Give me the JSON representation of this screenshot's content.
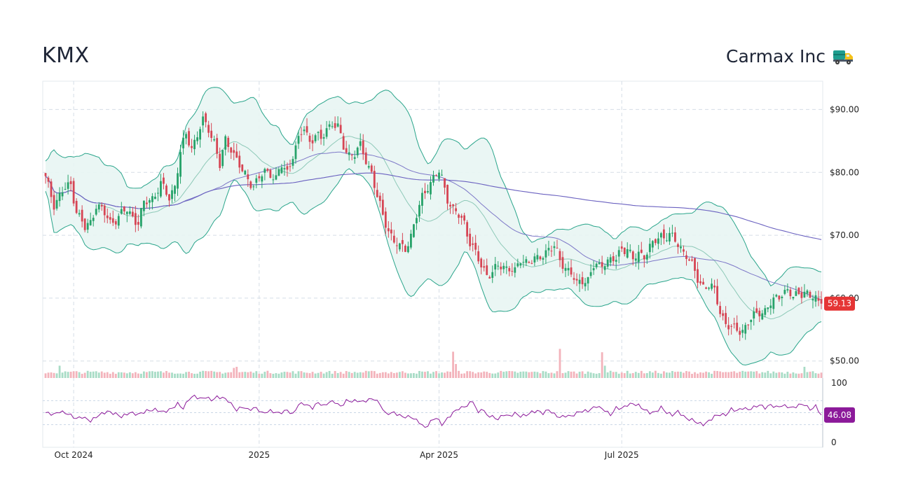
{
  "header": {
    "ticker": "KMX",
    "company": "Carmax Inc",
    "company_icon": "delivery-truck-icon"
  },
  "colors": {
    "up": "#26a269",
    "up_light": "#a8dcc6",
    "down": "#d64554",
    "down_light": "#f3b3bb",
    "band_fill": "#e8f5f3",
    "band_line": "#2aa58b",
    "ma_short": "#8ec9b8",
    "ma_long": "#6a61c0",
    "rsi": "#8c1a9a",
    "price_tag": "#e53535",
    "rsi_tag": "#8c1a9a"
  },
  "chart_data": [
    {
      "type": "candlestick",
      "panel": "price",
      "y_ticks": [
        "$50.00",
        "$60.00",
        "$70.00",
        "$80.00",
        "$90.00"
      ],
      "y_tick_values": [
        50,
        60,
        70,
        80,
        90
      ],
      "ylim": [
        47.3,
        94.5
      ],
      "x_ticks": [
        "Oct 2024",
        "2025",
        "Apr 2025",
        "Jul 2025"
      ],
      "x_tick_index": [
        10,
        76,
        140,
        205
      ],
      "last_price": "59.13",
      "anchors": [
        [
          0,
          79
        ],
        [
          3,
          75
        ],
        [
          6,
          77
        ],
        [
          9,
          78
        ],
        [
          11,
          74
        ],
        [
          14,
          71
        ],
        [
          16,
          72
        ],
        [
          18,
          75
        ],
        [
          20,
          74
        ],
        [
          23,
          72
        ],
        [
          26,
          73
        ],
        [
          29,
          74
        ],
        [
          31,
          73
        ],
        [
          33,
          72
        ],
        [
          35,
          75
        ],
        [
          38,
          76
        ],
        [
          41,
          78
        ],
        [
          44,
          76
        ],
        [
          46,
          78
        ],
        [
          48,
          83
        ],
        [
          50,
          86
        ],
        [
          52,
          84
        ],
        [
          54,
          86
        ],
        [
          56,
          88
        ],
        [
          58,
          87
        ],
        [
          60,
          85
        ],
        [
          62,
          81
        ],
        [
          64,
          85
        ],
        [
          66,
          84
        ],
        [
          68,
          82
        ],
        [
          70,
          80
        ],
        [
          72,
          79
        ],
        [
          74,
          78
        ],
        [
          76,
          79
        ],
        [
          78,
          80
        ],
        [
          80,
          80
        ],
        [
          82,
          79
        ],
        [
          84,
          81
        ],
        [
          86,
          80
        ],
        [
          88,
          83
        ],
        [
          90,
          85
        ],
        [
          92,
          87
        ],
        [
          94,
          85
        ],
        [
          96,
          86
        ],
        [
          98,
          85
        ],
        [
          100,
          87
        ],
        [
          102,
          88
        ],
        [
          104,
          87
        ],
        [
          106,
          84
        ],
        [
          108,
          83
        ],
        [
          110,
          83
        ],
        [
          112,
          84
        ],
        [
          114,
          82
        ],
        [
          116,
          80
        ],
        [
          118,
          76
        ],
        [
          120,
          73
        ],
        [
          122,
          71
        ],
        [
          124,
          69
        ],
        [
          126,
          68
        ],
        [
          128,
          68
        ],
        [
          130,
          70
        ],
        [
          132,
          73
        ],
        [
          134,
          76
        ],
        [
          136,
          78
        ],
        [
          138,
          79
        ],
        [
          140,
          80
        ],
        [
          141,
          79
        ],
        [
          143,
          76
        ],
        [
          145,
          74
        ],
        [
          147,
          73
        ],
        [
          149,
          72
        ],
        [
          151,
          69
        ],
        [
          153,
          67
        ],
        [
          155,
          65
        ],
        [
          157,
          64
        ],
        [
          159,
          64
        ],
        [
          161,
          65
        ],
        [
          163,
          65
        ],
        [
          165,
          65
        ],
        [
          167,
          64
        ],
        [
          169,
          66
        ],
        [
          171,
          66
        ],
        [
          173,
          66
        ],
        [
          175,
          66
        ],
        [
          177,
          67
        ],
        [
          179,
          68
        ],
        [
          181,
          68
        ],
        [
          183,
          66
        ],
        [
          185,
          65
        ],
        [
          187,
          64
        ],
        [
          189,
          62
        ],
        [
          191,
          63
        ],
        [
          193,
          63
        ],
        [
          195,
          65
        ],
        [
          197,
          65
        ],
        [
          199,
          66
        ],
        [
          201,
          66
        ],
        [
          203,
          66
        ],
        [
          205,
          68
        ],
        [
          207,
          68
        ],
        [
          209,
          66
        ],
        [
          211,
          67
        ],
        [
          213,
          67
        ],
        [
          215,
          68
        ],
        [
          217,
          69
        ],
        [
          219,
          70
        ],
        [
          220,
          70
        ],
        [
          222,
          70
        ],
        [
          224,
          69
        ],
        [
          226,
          68
        ],
        [
          228,
          67
        ],
        [
          230,
          65
        ],
        [
          232,
          63
        ],
        [
          234,
          62
        ],
        [
          236,
          62
        ],
        [
          238,
          61
        ],
        [
          240,
          58
        ],
        [
          242,
          56
        ],
        [
          244,
          55
        ],
        [
          246,
          55
        ],
        [
          248,
          55
        ],
        [
          250,
          56
        ],
        [
          252,
          57
        ],
        [
          254,
          58
        ],
        [
          256,
          58
        ],
        [
          258,
          59
        ],
        [
          260,
          60
        ],
        [
          262,
          61
        ],
        [
          264,
          61
        ],
        [
          266,
          60
        ],
        [
          268,
          61
        ],
        [
          270,
          61
        ],
        [
          272,
          60
        ],
        [
          274,
          60
        ],
        [
          276,
          59.13
        ]
      ],
      "volume": {
        "max_label": "",
        "typical": 1.0
      },
      "volume_spikes": [
        [
          5,
          2.2
        ],
        [
          67,
          1.8
        ],
        [
          68,
          2.0
        ],
        [
          145,
          4.7
        ],
        [
          146,
          2.5
        ],
        [
          183,
          5.2
        ],
        [
          198,
          4.6
        ],
        [
          199,
          2.2
        ],
        [
          270,
          2.0
        ]
      ],
      "indicators": [
        "Bollinger Bands (20,2)",
        "SMA 50",
        "SMA 200"
      ]
    },
    {
      "type": "line",
      "panel": "rsi",
      "y_ticks": [
        "0",
        "100"
      ],
      "y_tick_values": [
        0,
        100
      ],
      "ylim": [
        -8,
        108
      ],
      "guide_lines": [
        70,
        50,
        30
      ],
      "last_value": "46.08",
      "anchors": [
        [
          0,
          50
        ],
        [
          3,
          47
        ],
        [
          5,
          52
        ],
        [
          8,
          48
        ],
        [
          11,
          40
        ],
        [
          13,
          43
        ],
        [
          16,
          36
        ],
        [
          19,
          46
        ],
        [
          22,
          52
        ],
        [
          25,
          48
        ],
        [
          27,
          43
        ],
        [
          30,
          50
        ],
        [
          33,
          47
        ],
        [
          36,
          53
        ],
        [
          39,
          55
        ],
        [
          42,
          51
        ],
        [
          45,
          57
        ],
        [
          47,
          65
        ],
        [
          49,
          57
        ],
        [
          51,
          73
        ],
        [
          53,
          78
        ],
        [
          55,
          73
        ],
        [
          57,
          76
        ],
        [
          59,
          71
        ],
        [
          61,
          76
        ],
        [
          63,
          75
        ],
        [
          65,
          70
        ],
        [
          68,
          54
        ],
        [
          70,
          60
        ],
        [
          72,
          55
        ],
        [
          75,
          58
        ],
        [
          77,
          49
        ],
        [
          80,
          53
        ],
        [
          83,
          49
        ],
        [
          86,
          54
        ],
        [
          88,
          47
        ],
        [
          90,
          64
        ],
        [
          92,
          65
        ],
        [
          95,
          58
        ],
        [
          97,
          67
        ],
        [
          99,
          61
        ],
        [
          101,
          68
        ],
        [
          103,
          68
        ],
        [
          105,
          60
        ],
        [
          107,
          70
        ],
        [
          109,
          69
        ],
        [
          111,
          70
        ],
        [
          113,
          68
        ],
        [
          115,
          72
        ],
        [
          117,
          73
        ],
        [
          119,
          64
        ],
        [
          121,
          48
        ],
        [
          124,
          50
        ],
        [
          127,
          43
        ],
        [
          130,
          43
        ],
        [
          133,
          34
        ],
        [
          135,
          24
        ],
        [
          137,
          35
        ],
        [
          139,
          42
        ],
        [
          141,
          30
        ],
        [
          143,
          40
        ],
        [
          145,
          50
        ],
        [
          147,
          57
        ],
        [
          148,
          58
        ],
        [
          150,
          62
        ],
        [
          152,
          70
        ],
        [
          154,
          48
        ],
        [
          155,
          58
        ],
        [
          157,
          46
        ],
        [
          159,
          43
        ],
        [
          161,
          39
        ],
        [
          163,
          47
        ],
        [
          165,
          44
        ],
        [
          167,
          49
        ],
        [
          169,
          44
        ],
        [
          171,
          46
        ],
        [
          173,
          51
        ],
        [
          175,
          53
        ],
        [
          177,
          49
        ],
        [
          179,
          55
        ],
        [
          181,
          47
        ],
        [
          183,
          42
        ],
        [
          185,
          45
        ],
        [
          187,
          44
        ],
        [
          190,
          52
        ],
        [
          193,
          53
        ],
        [
          196,
          61
        ],
        [
          199,
          54
        ],
        [
          201,
          46
        ],
        [
          203,
          58
        ],
        [
          205,
          57
        ],
        [
          207,
          63
        ],
        [
          209,
          65
        ],
        [
          211,
          62
        ],
        [
          213,
          55
        ],
        [
          215,
          50
        ],
        [
          217,
          51
        ],
        [
          219,
          59
        ],
        [
          221,
          50
        ],
        [
          223,
          46
        ],
        [
          225,
          52
        ],
        [
          228,
          40
        ],
        [
          230,
          38
        ],
        [
          232,
          33
        ],
        [
          234,
          30
        ],
        [
          236,
          36
        ],
        [
          238,
          44
        ],
        [
          240,
          47
        ],
        [
          242,
          46
        ],
        [
          244,
          56
        ],
        [
          246,
          53
        ],
        [
          248,
          58
        ],
        [
          250,
          55
        ],
        [
          252,
          59
        ],
        [
          254,
          63
        ],
        [
          256,
          58
        ],
        [
          258,
          63
        ],
        [
          260,
          59
        ],
        [
          262,
          62
        ],
        [
          264,
          60
        ],
        [
          266,
          58
        ],
        [
          268,
          63
        ],
        [
          270,
          64
        ],
        [
          272,
          55
        ],
        [
          274,
          61
        ],
        [
          276,
          46.08
        ]
      ]
    }
  ]
}
